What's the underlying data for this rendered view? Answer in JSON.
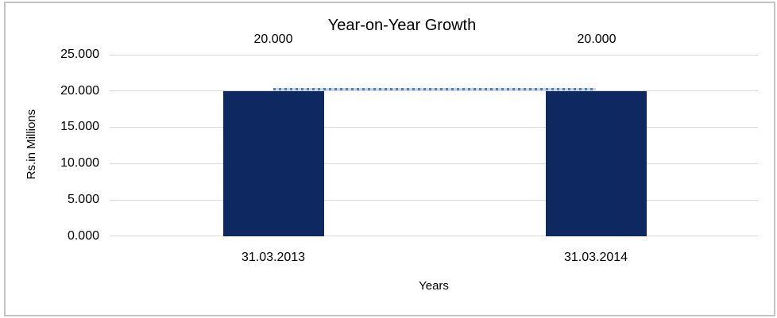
{
  "chart_data": {
    "type": "bar",
    "title": "Year-on-Year Growth",
    "xlabel": "Years",
    "ylabel": "Rs.in Millions",
    "categories": [
      "31.03.2013",
      "31.03.2014"
    ],
    "values": [
      20.0,
      20.0
    ],
    "data_labels": [
      "20.000",
      "20.000"
    ],
    "ytick_labels": [
      "25.000",
      "20.000",
      "15.000",
      "10.000",
      "5.000",
      "0.000"
    ],
    "ylim": [
      0,
      25
    ],
    "grid": true,
    "legend": "none",
    "trendline": {
      "style": "dotted",
      "x": [
        "31.03.2013",
        "31.03.2014"
      ],
      "y": [
        20.0,
        20.0
      ]
    },
    "colors": {
      "bar_fill": "#0e2962",
      "trendline": "#4f81bd",
      "gridline": "#d9d9d9",
      "frame_border": "#c3c3c3",
      "text": "#000000",
      "background": "#ffffff"
    }
  }
}
